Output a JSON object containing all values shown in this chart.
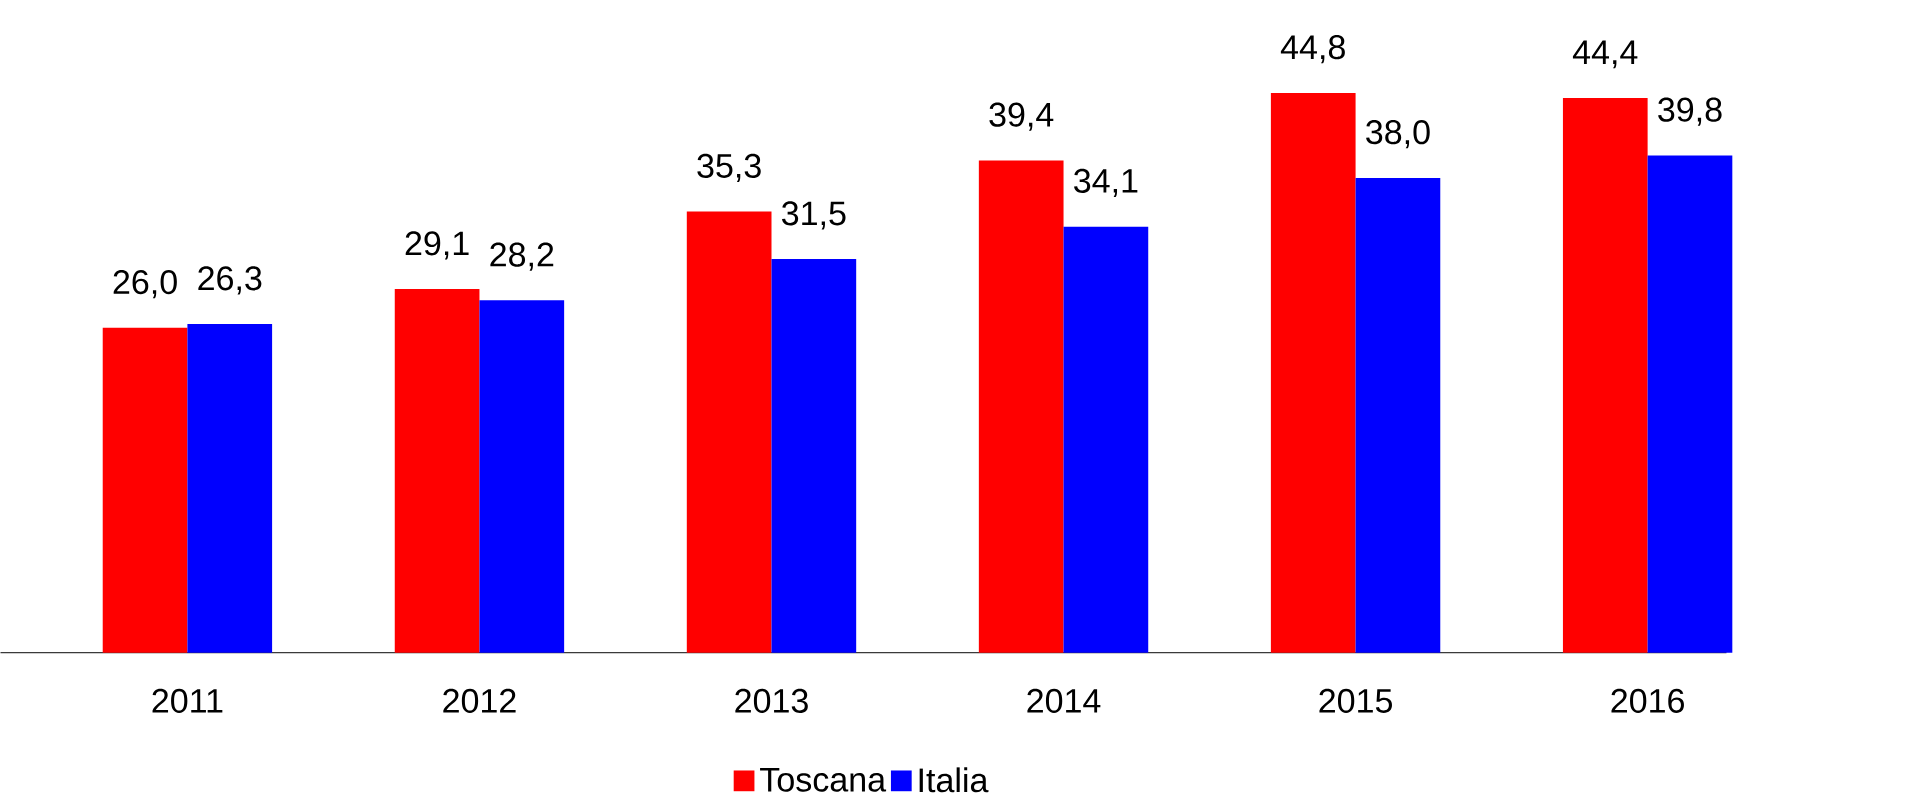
{
  "chart_data": {
    "type": "bar",
    "categories": [
      "2011",
      "2012",
      "2013",
      "2014",
      "2015",
      "2016"
    ],
    "series": [
      {
        "name": "Toscana",
        "color": "#ff0000",
        "values": [
          26.0,
          29.1,
          35.3,
          39.4,
          44.8,
          44.4
        ],
        "value_labels": [
          "26,0",
          "29,1",
          "35,3",
          "39,4",
          "44,8",
          "44,4"
        ]
      },
      {
        "name": "Italia",
        "color": "#0000ff",
        "values": [
          26.3,
          28.2,
          31.5,
          34.1,
          38.0,
          39.8
        ],
        "value_labels": [
          "26,3",
          "28,2",
          "31,5",
          "34,1",
          "38,0",
          "39,8"
        ]
      }
    ],
    "legend": "bottom"
  }
}
